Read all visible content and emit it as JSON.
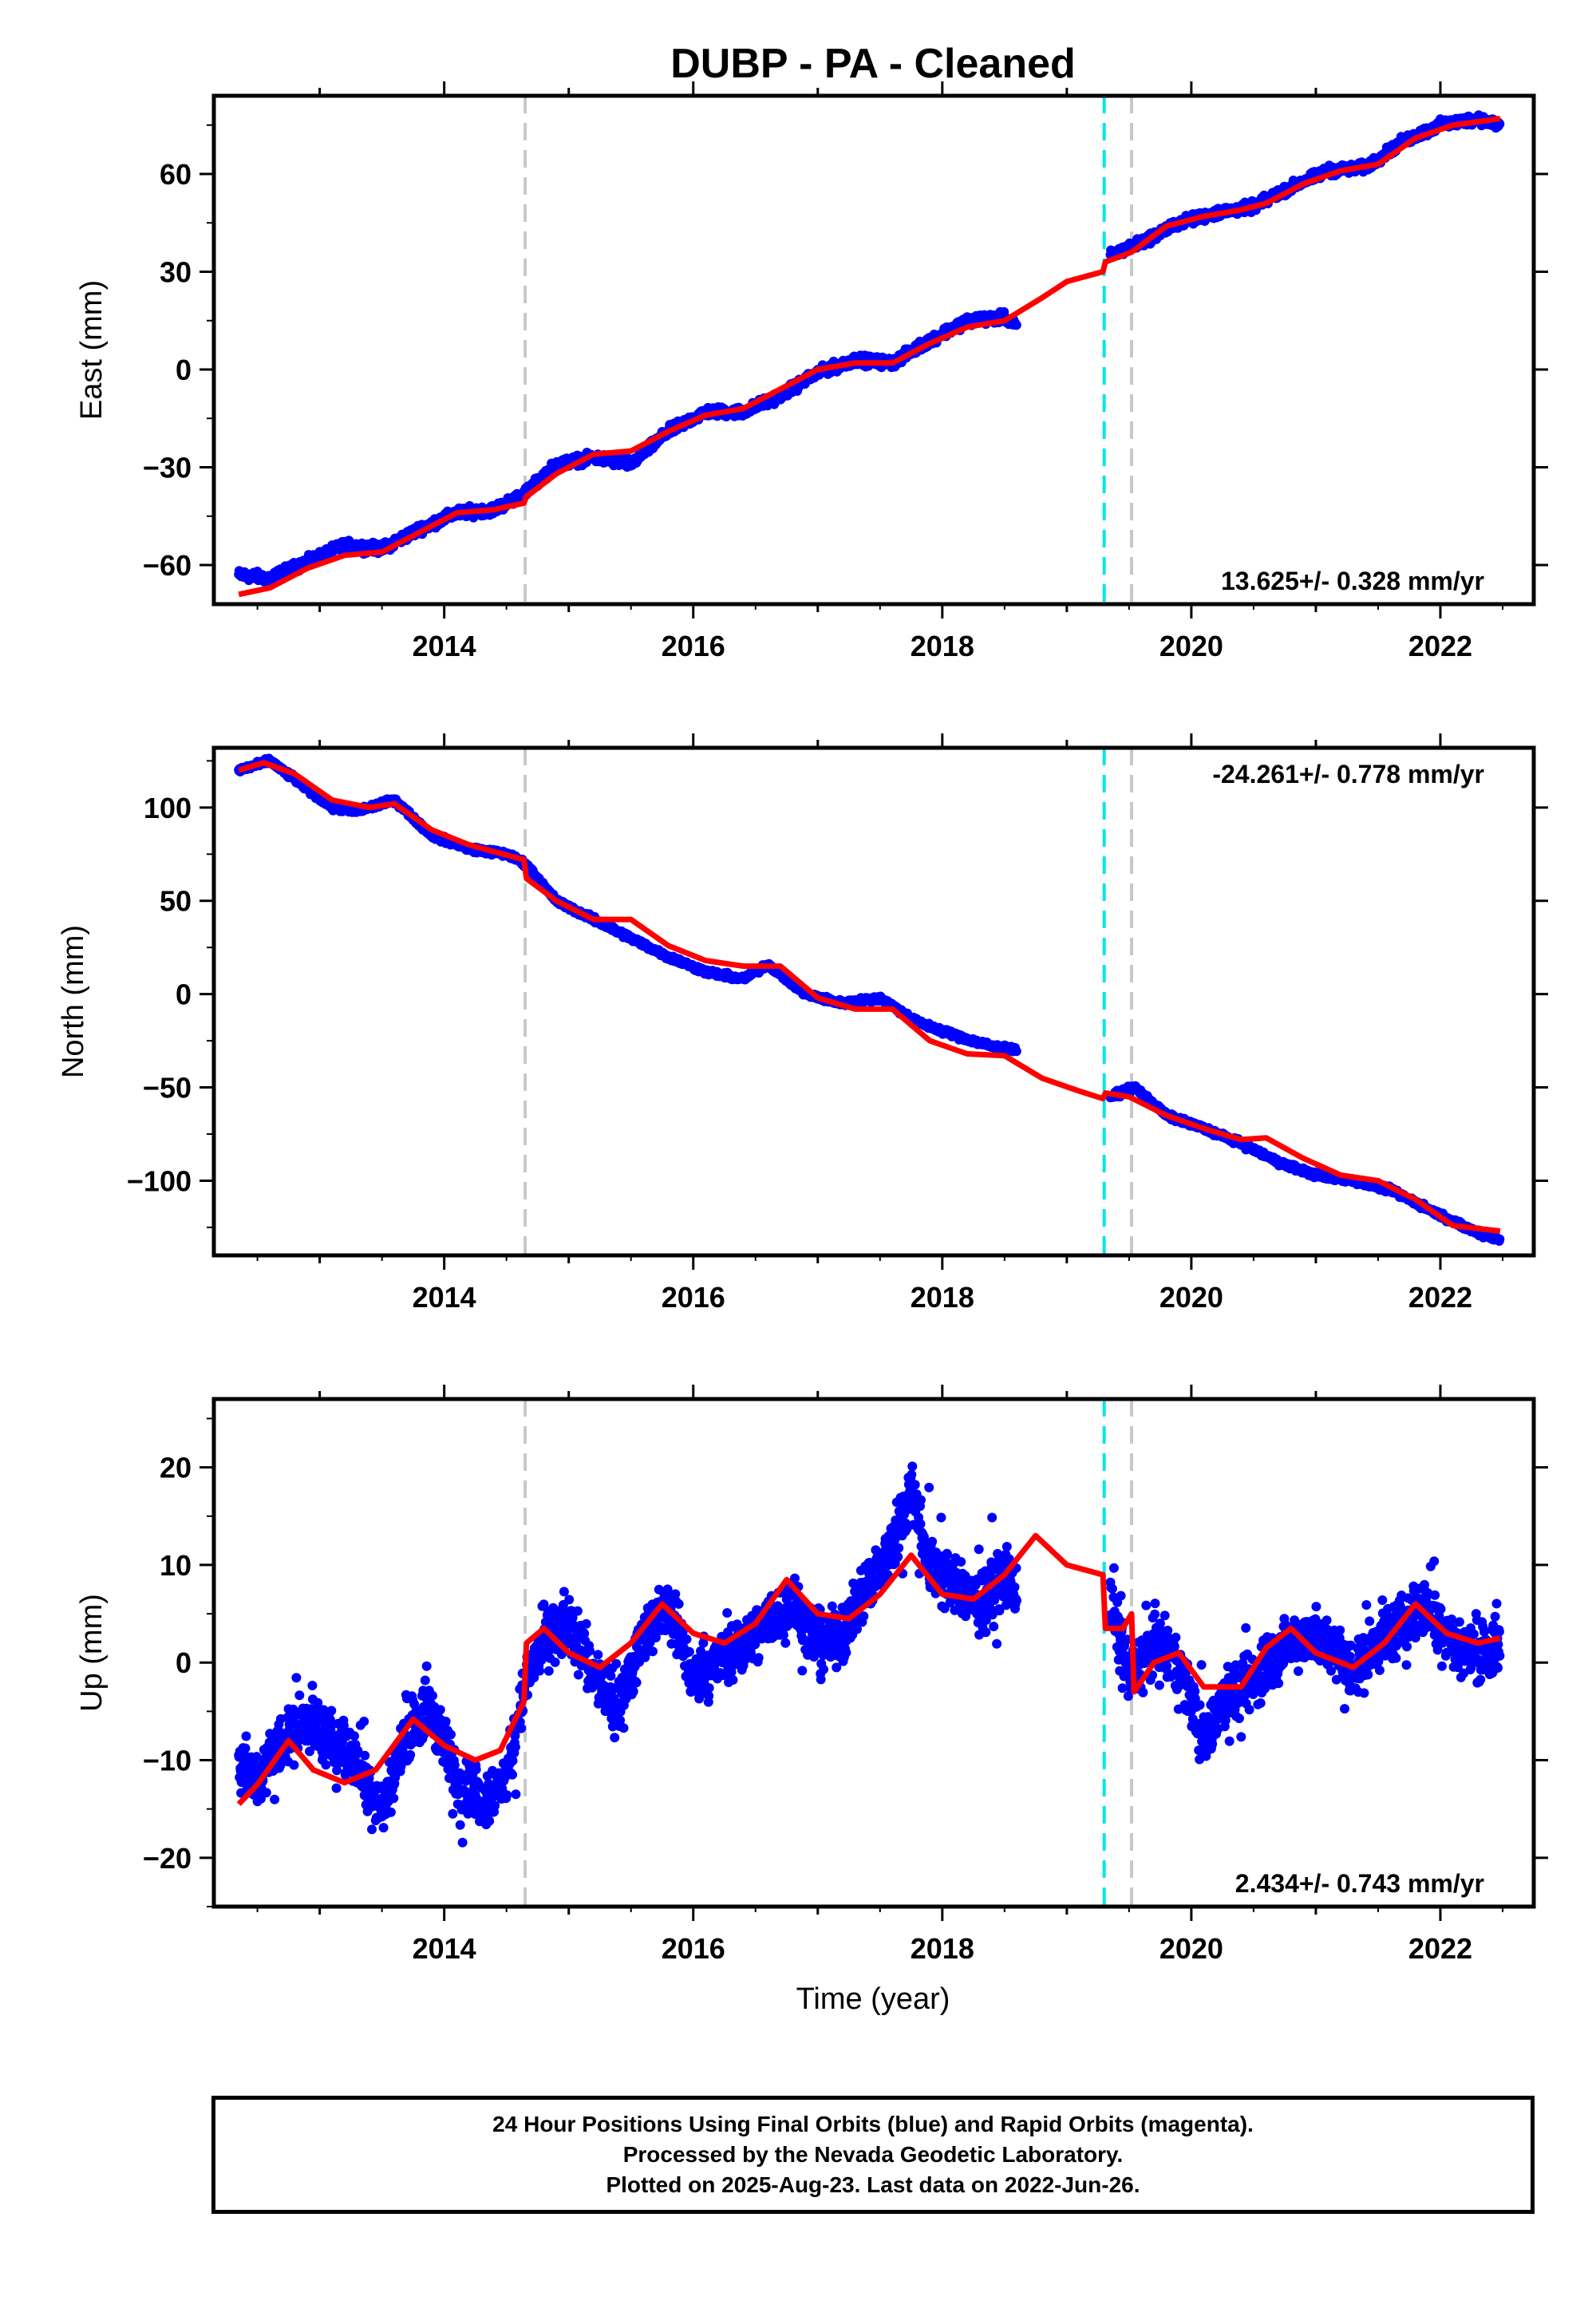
{
  "chart_data": [
    {
      "type": "scatter",
      "title": "DUBP  - PA - Cleaned",
      "ylabel": "East (mm)",
      "xlabel": "",
      "xlim": [
        2012.15,
        2022.75
      ],
      "ylim": [
        -72,
        84
      ],
      "xticks": [
        2014,
        2016,
        2018,
        2020,
        2022
      ],
      "yticks": [
        -60,
        -30,
        0,
        30,
        60
      ],
      "rate_label": "13.625+/- 0.328 mm/yr",
      "rate_position": "bottom-right",
      "gray_breaks": [
        2014.65,
        2019.52
      ],
      "cyan_breaks": [
        2019.3
      ],
      "grid": false,
      "series": [
        {
          "role": "data",
          "color": "#0000ff",
          "x": [
            2012.35,
            2012.6,
            2012.9,
            2013.2,
            2013.5,
            2013.8,
            2014.1,
            2014.4,
            2014.65,
            2014.9,
            2015.2,
            2015.5,
            2015.8,
            2016.1,
            2016.4,
            2016.7,
            2017.0,
            2017.3,
            2017.6,
            2017.9,
            2018.2,
            2018.5,
            2018.6,
            2019.35,
            2019.6,
            2019.9,
            2020.2,
            2020.5,
            2020.8,
            2021.1,
            2021.4,
            2021.7,
            2022.0,
            2022.3,
            2022.48
          ],
          "y": [
            -63,
            -64,
            -59,
            -54,
            -55,
            -49,
            -44,
            -43,
            -38,
            -29,
            -27,
            -29,
            -19,
            -13,
            -13,
            -8,
            -1,
            3,
            2,
            9,
            15,
            16,
            13,
            35,
            39,
            45,
            48,
            50,
            56,
            61,
            62,
            70,
            75,
            77,
            75
          ]
        },
        {
          "role": "model",
          "color": "#ff0000",
          "x": [
            2012.35,
            2012.6,
            2012.9,
            2013.2,
            2013.5,
            2013.8,
            2014.1,
            2014.4,
            2014.64,
            2014.66,
            2014.9,
            2015.2,
            2015.5,
            2015.8,
            2016.1,
            2016.4,
            2016.7,
            2017.0,
            2017.3,
            2017.6,
            2017.9,
            2018.2,
            2018.5,
            2018.8,
            2019.0,
            2019.29,
            2019.31,
            2019.52,
            2019.8,
            2020.1,
            2020.4,
            2020.6,
            2020.9,
            2021.2,
            2021.5,
            2021.8,
            2022.1,
            2022.48
          ],
          "y": [
            -69,
            -67,
            -61,
            -57,
            -56,
            -50,
            -44,
            -43,
            -41,
            -39,
            -32,
            -26,
            -25,
            -19,
            -14,
            -12,
            -6,
            0,
            2,
            2,
            8,
            13,
            15,
            22,
            27,
            30,
            33,
            36,
            44,
            47,
            49,
            51,
            57,
            61,
            63,
            71,
            75,
            77
          ]
        }
      ]
    },
    {
      "type": "scatter",
      "title": "",
      "ylabel": "North (mm)",
      "xlabel": "",
      "xlim": [
        2012.15,
        2022.75
      ],
      "ylim": [
        -140,
        132
      ],
      "xticks": [
        2014,
        2016,
        2018,
        2020,
        2022
      ],
      "yticks": [
        -100,
        -50,
        0,
        50,
        100
      ],
      "rate_label": "-24.261+/- 0.778 mm/yr",
      "rate_position": "top-right",
      "gray_breaks": [
        2014.65,
        2019.52
      ],
      "cyan_breaks": [
        2019.3
      ],
      "grid": false,
      "series": [
        {
          "role": "data",
          "color": "#0000ff",
          "x": [
            2012.35,
            2012.6,
            2012.8,
            2013.1,
            2013.3,
            2013.6,
            2013.9,
            2014.2,
            2014.5,
            2014.65,
            2014.9,
            2015.2,
            2015.5,
            2015.8,
            2016.1,
            2016.4,
            2016.6,
            2016.9,
            2017.2,
            2017.5,
            2017.8,
            2018.1,
            2018.4,
            2018.6,
            2019.35,
            2019.55,
            2019.8,
            2020.1,
            2020.4,
            2020.7,
            2021.0,
            2021.3,
            2021.6,
            2021.9,
            2022.2,
            2022.48
          ],
          "y": [
            120,
            125,
            115,
            100,
            98,
            104,
            85,
            78,
            75,
            70,
            50,
            40,
            30,
            20,
            12,
            8,
            16,
            0,
            -5,
            -2,
            -15,
            -22,
            -28,
            -30,
            -55,
            -50,
            -65,
            -72,
            -80,
            -90,
            -97,
            -100,
            -105,
            -115,
            -125,
            -132
          ]
        },
        {
          "role": "model",
          "color": "#ff0000",
          "x": [
            2012.35,
            2012.55,
            2012.8,
            2013.1,
            2013.4,
            2013.6,
            2013.9,
            2014.2,
            2014.64,
            2014.66,
            2014.9,
            2015.2,
            2015.5,
            2015.8,
            2016.1,
            2016.4,
            2016.7,
            2017.0,
            2017.3,
            2017.6,
            2017.9,
            2018.2,
            2018.5,
            2018.8,
            2019.1,
            2019.29,
            2019.31,
            2019.5,
            2019.8,
            2020.1,
            2020.4,
            2020.6,
            2020.9,
            2021.2,
            2021.5,
            2021.8,
            2022.1,
            2022.48
          ],
          "y": [
            120,
            124,
            118,
            104,
            100,
            102,
            88,
            80,
            72,
            62,
            50,
            40,
            40,
            26,
            18,
            15,
            15,
            -2,
            -8,
            -8,
            -25,
            -32,
            -33,
            -45,
            -52,
            -56,
            -53,
            -55,
            -65,
            -72,
            -78,
            -77,
            -88,
            -97,
            -100,
            -110,
            -124,
            -127
          ]
        }
      ]
    },
    {
      "type": "scatter",
      "title": "",
      "ylabel": "Up (mm)",
      "xlabel": "Time (year)",
      "xlim": [
        2012.15,
        2022.75
      ],
      "ylim": [
        -25,
        27
      ],
      "xticks": [
        2014,
        2016,
        2018,
        2020,
        2022
      ],
      "yticks": [
        -20,
        -10,
        0,
        10,
        20
      ],
      "rate_label": "2.434+/- 0.743 mm/yr",
      "rate_position": "bottom-right",
      "gray_breaks": [
        2014.65,
        2019.52
      ],
      "cyan_breaks": [
        2019.3
      ],
      "grid": false,
      "series": [
        {
          "role": "data",
          "color": "#0000ff",
          "x": [
            2012.35,
            2012.5,
            2012.7,
            2012.9,
            2013.1,
            2013.3,
            2013.5,
            2013.7,
            2013.9,
            2014.1,
            2014.3,
            2014.5,
            2014.65,
            2014.8,
            2015.0,
            2015.2,
            2015.4,
            2015.6,
            2015.8,
            2016.0,
            2016.2,
            2016.4,
            2016.6,
            2016.8,
            2017.0,
            2017.2,
            2017.4,
            2017.6,
            2017.75,
            2017.9,
            2018.1,
            2018.3,
            2018.5,
            2018.6,
            2019.35,
            2019.5,
            2019.7,
            2019.9,
            2020.1,
            2020.3,
            2020.5,
            2020.7,
            2020.9,
            2021.1,
            2021.3,
            2021.5,
            2021.7,
            2021.9,
            2022.1,
            2022.3,
            2022.48
          ],
          "y": [
            -10,
            -12,
            -8,
            -6,
            -8,
            -10,
            -15,
            -7,
            -5,
            -12,
            -14,
            -12,
            -2,
            2,
            4,
            -1,
            -5,
            3,
            6,
            -2,
            0,
            2,
            4,
            6,
            2,
            3,
            8,
            12,
            18,
            10,
            8,
            6,
            9,
            7,
            6,
            -2,
            2,
            0,
            -8,
            -3,
            -2,
            1,
            3,
            2,
            -1,
            2,
            4,
            6,
            2,
            1,
            1
          ]
        },
        {
          "role": "model",
          "color": "#ff0000",
          "x": [
            2012.35,
            2012.5,
            2012.75,
            2012.95,
            2013.2,
            2013.45,
            2013.75,
            2014.0,
            2014.25,
            2014.45,
            2014.64,
            2014.66,
            2014.8,
            2015.0,
            2015.25,
            2015.5,
            2015.75,
            2016.0,
            2016.25,
            2016.5,
            2016.75,
            2017.0,
            2017.25,
            2017.5,
            2017.75,
            2018.0,
            2018.25,
            2018.5,
            2018.75,
            2019.0,
            2019.29,
            2019.31,
            2019.45,
            2019.52,
            2019.54,
            2019.7,
            2019.9,
            2020.1,
            2020.4,
            2020.6,
            2020.8,
            2021.0,
            2021.3,
            2021.55,
            2021.8,
            2022.05,
            2022.3,
            2022.48
          ],
          "y": [
            -14.5,
            -12.5,
            -8,
            -11,
            -12.3,
            -11,
            -5.8,
            -8.5,
            -10,
            -9,
            -4,
            2,
            3.5,
            1,
            -0.5,
            2,
            6,
            3,
            2,
            4,
            8.5,
            5,
            4.5,
            7,
            11,
            7,
            6.5,
            9,
            13,
            10,
            9,
            3.5,
            3.5,
            5,
            -3,
            0,
            1,
            -2.5,
            -2.5,
            1.5,
            3.5,
            1,
            -0.5,
            2,
            6,
            3,
            2,
            2.5
          ]
        }
      ]
    }
  ],
  "footer": {
    "line1": "24 Hour Positions Using Final Orbits (blue) and Rapid Orbits (magenta).",
    "line2": "Processed by the Nevada Geodetic Laboratory.",
    "line3": "Plotted on 2025-Aug-23. Last data on 2022-Jun-26."
  }
}
